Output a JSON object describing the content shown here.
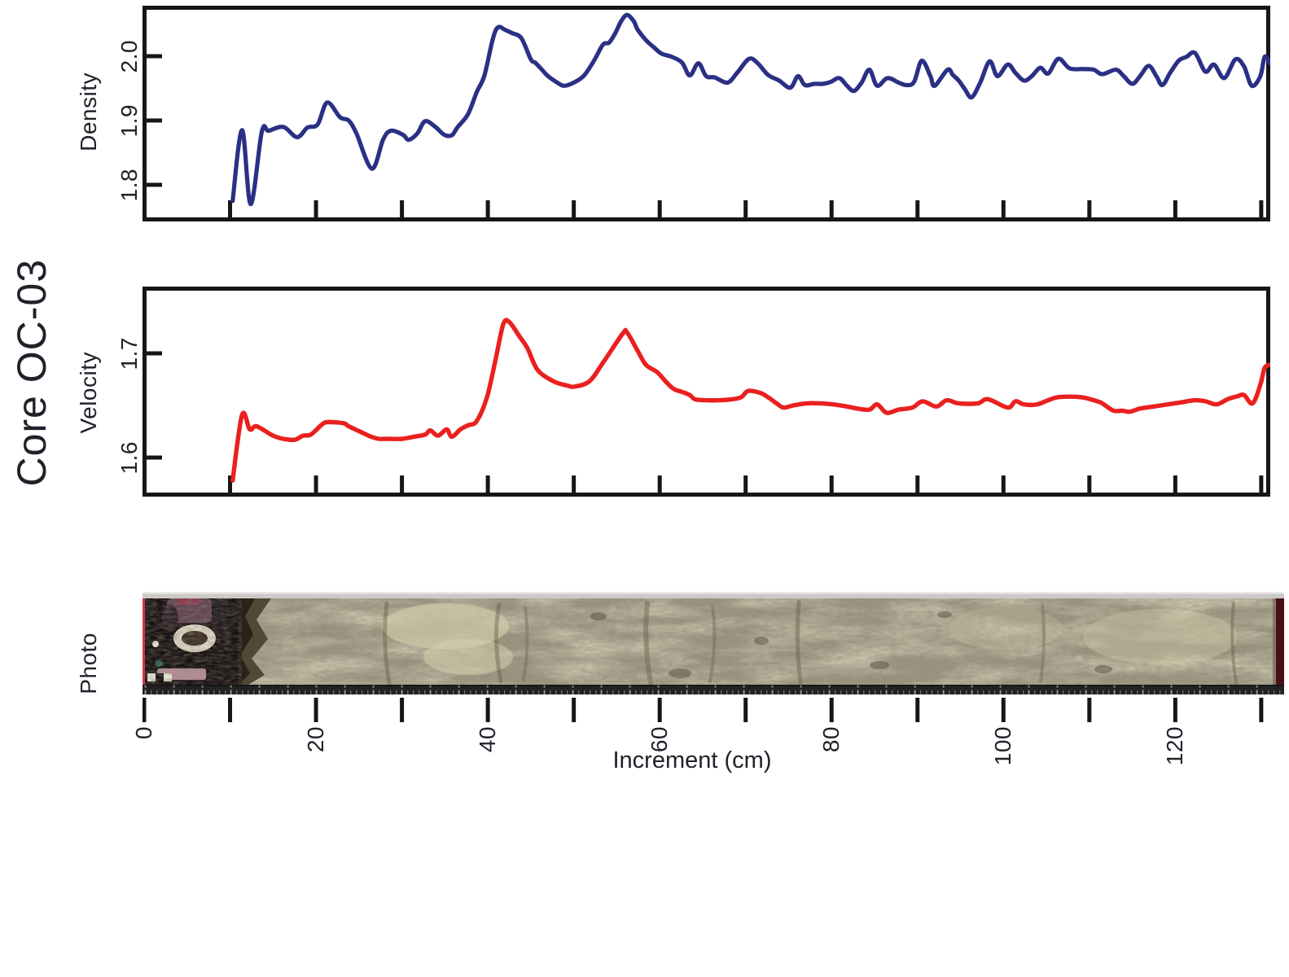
{
  "labels": {
    "core_title": "Core OC-03",
    "density": "Density",
    "velocity": "Velocity",
    "photo": "Photo",
    "increment": "Increment (cm)"
  },
  "x_axis": {
    "label": "Increment (cm)",
    "major_ticks": [
      0,
      20,
      40,
      60,
      80,
      100,
      120
    ],
    "minor_tick_step": 10,
    "range_cm": [
      0,
      131
    ]
  },
  "chart_data": [
    {
      "type": "line",
      "name": "density",
      "ylabel": "Density",
      "color": "#2a3084",
      "line_width": 5.2,
      "xlim": [
        0,
        131
      ],
      "ylim": [
        1.745,
        2.08
      ],
      "yticks": [
        1.8,
        1.9,
        2.0
      ],
      "x": [
        10.3,
        11.4,
        12.4,
        13.7,
        14.5,
        16.2,
        17.8,
        19,
        20.2,
        21.3,
        22.8,
        23.8,
        24.7,
        26.5,
        27.8,
        28.7,
        30.1,
        30.8,
        31.8,
        32.7,
        33.9,
        34.9,
        35.8,
        36.5,
        37.7,
        38.7,
        39.6,
        40.6,
        41.2,
        42,
        42.8,
        43.9,
        45,
        45.5,
        46.3,
        47,
        48.2,
        48.9,
        50,
        51.2,
        52.4,
        53.4,
        54.1,
        54.8,
        55.5,
        56.2,
        57,
        57.4,
        58.4,
        59.3,
        60.2,
        61.4,
        62.6,
        63.5,
        64.5,
        65.4,
        66.4,
        67.9,
        69,
        70.4,
        71.4,
        72.6,
        73.9,
        75.2,
        76.1,
        76.9,
        78,
        79,
        79.9,
        80.9,
        81.8,
        82.6,
        83.5,
        84.4,
        85.3,
        86.5,
        87.8,
        88.7,
        89.6,
        90.5,
        91.5,
        92,
        93.5,
        94.1,
        94.8,
        95.5,
        96.3,
        97.3,
        98.4,
        99.3,
        100.5,
        101.4,
        102.4,
        103.3,
        104.3,
        105.2,
        106.4,
        107.7,
        109.3,
        110.5,
        111.5,
        113.1,
        114,
        115,
        115.9,
        116.9,
        117.8,
        118.5,
        119.4,
        120.4,
        121.3,
        122.3,
        123.5,
        124.5,
        125.7,
        127,
        128,
        128.9,
        129.9,
        130.4,
        131
      ],
      "y": [
        1.775,
        1.885,
        1.77,
        1.883,
        1.884,
        1.89,
        1.874,
        1.889,
        1.894,
        1.928,
        1.905,
        1.9,
        1.88,
        1.825,
        1.87,
        1.884,
        1.878,
        1.87,
        1.88,
        1.899,
        1.89,
        1.878,
        1.877,
        1.89,
        1.91,
        1.944,
        1.97,
        2.028,
        2.045,
        2.041,
        2.036,
        2.028,
        1.995,
        1.99,
        1.979,
        1.969,
        1.958,
        1.954,
        1.959,
        1.97,
        1.994,
        2.018,
        2.021,
        2.035,
        2.054,
        2.064,
        2.054,
        2.042,
        2.025,
        2.014,
        2.004,
        1.999,
        1.99,
        1.97,
        1.989,
        1.969,
        1.967,
        1.959,
        1.974,
        1.996,
        1.989,
        1.971,
        1.962,
        1.951,
        1.969,
        1.955,
        1.957,
        1.957,
        1.96,
        1.966,
        1.954,
        1.946,
        1.959,
        1.979,
        1.954,
        1.966,
        1.959,
        1.955,
        1.96,
        1.993,
        1.969,
        1.954,
        1.979,
        1.971,
        1.962,
        1.949,
        1.936,
        1.959,
        1.992,
        1.969,
        1.987,
        1.974,
        1.962,
        1.969,
        1.982,
        1.973,
        1.996,
        1.981,
        1.98,
        1.979,
        1.972,
        1.979,
        1.969,
        1.957,
        1.969,
        1.985,
        1.969,
        1.955,
        1.974,
        1.993,
        1.999,
        2.005,
        1.976,
        1.987,
        1.966,
        1.995,
        1.984,
        1.954,
        1.969,
        1.999,
        1.989
      ]
    },
    {
      "type": "line",
      "name": "velocity",
      "ylabel": "Velocity",
      "color": "#ea201f",
      "line_width": 5.4,
      "xlim": [
        0,
        131
      ],
      "ylim": [
        1.5625,
        1.764
      ],
      "yticks": [
        1.6,
        1.7
      ],
      "x": [
        10.3,
        11.4,
        12.3,
        13.1,
        15,
        16.2,
        17.5,
        18.5,
        19.4,
        20.6,
        21.3,
        23.2,
        23.8,
        25.1,
        26.4,
        27.3,
        28.2,
        30,
        31.4,
        32.7,
        33.3,
        34.2,
        35.2,
        35.8,
        36.8,
        37.7,
        38.7,
        39.9,
        40.9,
        41.8,
        42.5,
        43.7,
        44.6,
        45.8,
        47.7,
        49.3,
        50,
        51.8,
        53.4,
        55.7,
        56.2,
        57.4,
        58.4,
        59.7,
        60.7,
        61.6,
        62.6,
        63.5,
        64.1,
        65.4,
        66.9,
        68.5,
        69.5,
        70.3,
        71.7,
        72.6,
        73.6,
        74.4,
        75.5,
        77.1,
        78.7,
        80.2,
        81.8,
        83,
        84.4,
        85.3,
        86.4,
        87.8,
        89.4,
        90.6,
        92.2,
        93.4,
        94.8,
        97,
        98.2,
        100.5,
        101.4,
        102.4,
        103.9,
        105.2,
        106.4,
        109,
        110.9,
        111.5,
        112.8,
        113.8,
        114.7,
        115.9,
        117.5,
        119.1,
        120.7,
        122.3,
        123.5,
        124.8,
        126.1,
        127.3,
        128,
        129,
        129.9,
        130.4,
        131
      ],
      "y": [
        1.578,
        1.641,
        1.627,
        1.63,
        1.621,
        1.618,
        1.617,
        1.621,
        1.622,
        1.631,
        1.634,
        1.633,
        1.63,
        1.625,
        1.62,
        1.618,
        1.618,
        1.618,
        1.62,
        1.622,
        1.626,
        1.621,
        1.627,
        1.62,
        1.627,
        1.631,
        1.635,
        1.658,
        1.694,
        1.728,
        1.73,
        1.716,
        1.705,
        1.684,
        1.673,
        1.669,
        1.668,
        1.673,
        1.691,
        1.719,
        1.72,
        1.703,
        1.689,
        1.682,
        1.673,
        1.666,
        1.663,
        1.66,
        1.656,
        1.655,
        1.655,
        1.656,
        1.658,
        1.664,
        1.662,
        1.658,
        1.652,
        1.648,
        1.65,
        1.652,
        1.652,
        1.651,
        1.649,
        1.647,
        1.646,
        1.651,
        1.643,
        1.646,
        1.648,
        1.654,
        1.649,
        1.655,
        1.652,
        1.652,
        1.656,
        1.648,
        1.654,
        1.651,
        1.651,
        1.655,
        1.658,
        1.658,
        1.654,
        1.652,
        1.645,
        1.645,
        1.644,
        1.647,
        1.649,
        1.651,
        1.653,
        1.655,
        1.654,
        1.651,
        1.656,
        1.659,
        1.66,
        1.652,
        1.67,
        1.686,
        1.689
      ]
    },
    {
      "type": "photo",
      "name": "core-photo",
      "ylabel": "Photo",
      "description": "Split sediment core photograph, 0-131 cm: dark disturbed material with pink/white clasts from 0 to ~11 cm, then mottled olive-tan mud to end of core; metric ruler strip along base",
      "palette": {
        "tray_gray": "#cbcac7",
        "tray_highlight": "#e9e8e6",
        "sediment_tan": "#9c9480",
        "sediment_light": "#cdc5a4",
        "sediment_light2": "#d6cfae",
        "sediment_dark": "#6e6854",
        "dark_zone": "#191214",
        "maroon_band": "#6d4a5a",
        "maroon_top": "#8c3a50",
        "pink_strip": "#b58e96",
        "white_clast": "#ded6c4",
        "clast_core": "#3c2e26",
        "teal_spot": "#2a5e52",
        "edge_red": "#d2354a",
        "edge_maroon": "#451016",
        "ruler_black": "#222222",
        "ruler_tick": "#6b6b6b",
        "ruler_tick_major": "#909090"
      }
    }
  ],
  "frame_color": "#161616"
}
